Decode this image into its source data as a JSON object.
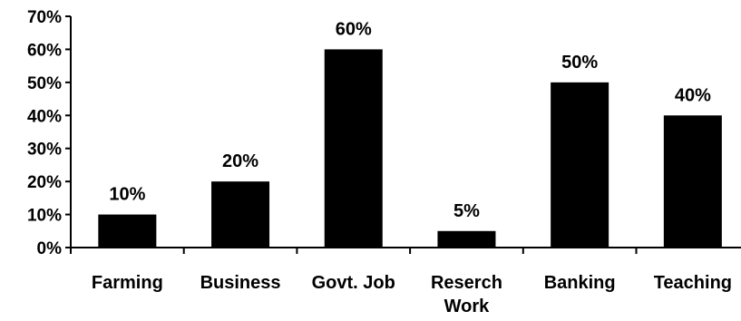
{
  "chart_data": {
    "type": "bar",
    "title": "",
    "xlabel": "",
    "ylabel": "",
    "categories": [
      [
        "Farming"
      ],
      [
        "Business"
      ],
      [
        "Govt. Job"
      ],
      [
        "Reserch",
        "Work"
      ],
      [
        "Banking"
      ],
      [
        "Teaching"
      ]
    ],
    "values": [
      10,
      20,
      60,
      5,
      50,
      40
    ],
    "data_labels": [
      "10%",
      "20%",
      "60%",
      "5%",
      "50%",
      "40%"
    ],
    "ylim": [
      0,
      70
    ],
    "yticks": [
      0,
      10,
      20,
      30,
      40,
      50,
      60,
      70
    ],
    "ytick_labels": [
      "0%",
      "10%",
      "20%",
      "30%",
      "40%",
      "50%",
      "60%",
      "70%"
    ],
    "grid": false,
    "legend": "none",
    "bar_color": "#000000"
  }
}
